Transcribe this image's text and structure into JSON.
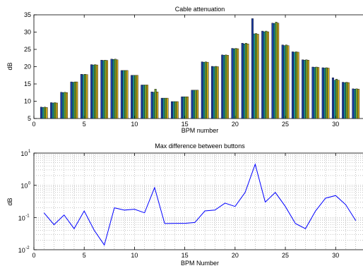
{
  "chart_data": [
    {
      "type": "bar",
      "title": "Cable attenuation",
      "xlabel": "BPM number",
      "ylabel": "dB",
      "xlim": [
        0,
        33
      ],
      "ylim": [
        5,
        35
      ],
      "xticks": [
        0,
        5,
        10,
        15,
        20,
        25,
        30
      ],
      "yticks": [
        5,
        10,
        15,
        20,
        25,
        30,
        35
      ],
      "grid": false,
      "legend": "none",
      "series_colors": [
        "#1f3ea8",
        "#1d8f93",
        "#6fa32e",
        "#c8a31c",
        "#b04a22",
        "#3a3a3a"
      ],
      "x": [
        1,
        2,
        3,
        4,
        5,
        6,
        7,
        8,
        9,
        10,
        11,
        12,
        13,
        14,
        15,
        16,
        17,
        18,
        19,
        20,
        21,
        22,
        23,
        24,
        25,
        26,
        27,
        28,
        29,
        30,
        31,
        32
      ],
      "values": [
        [
          8.3,
          8.2,
          8.3,
          8.2
        ],
        [
          9.6,
          9.5,
          9.6,
          9.5
        ],
        [
          12.6,
          12.5,
          12.6,
          12.5
        ],
        [
          15.6,
          15.5,
          15.6,
          15.6
        ],
        [
          17.8,
          17.7,
          17.8,
          17.7
        ],
        [
          20.6,
          20.5,
          20.6,
          20.5
        ],
        [
          21.9,
          21.8,
          21.9,
          21.8
        ],
        [
          22.2,
          22.1,
          22.2,
          22.0
        ],
        [
          18.9,
          18.9,
          18.9,
          18.9
        ],
        [
          17.5,
          17.5,
          17.5,
          17.5
        ],
        [
          14.7,
          14.7,
          14.7,
          14.7
        ],
        [
          12.7,
          12.6,
          13.5,
          12.7
        ],
        [
          10.9,
          10.9,
          10.9,
          10.9
        ],
        [
          9.9,
          9.9,
          9.9,
          9.9
        ],
        [
          11.3,
          11.3,
          11.3,
          11.3
        ],
        [
          13.2,
          13.2,
          13.2,
          13.2
        ],
        [
          21.4,
          21.3,
          21.4,
          21.3
        ],
        [
          20.1,
          20.0,
          20.1,
          20.0
        ],
        [
          23.4,
          23.3,
          23.4,
          23.3
        ],
        [
          25.3,
          25.2,
          25.3,
          25.2
        ],
        [
          26.8,
          26.6,
          26.8,
          26.6
        ],
        [
          33.9,
          29.5,
          29.6,
          29.4
        ],
        [
          30.3,
          30.1,
          30.3,
          30.1
        ],
        [
          32.6,
          32.5,
          32.9,
          32.6
        ],
        [
          26.3,
          26.1,
          26.3,
          26.1
        ],
        [
          24.3,
          24.2,
          24.3,
          24.2
        ],
        [
          22.0,
          21.9,
          22.0,
          21.9
        ],
        [
          19.9,
          19.8,
          19.9,
          19.8
        ],
        [
          19.7,
          19.6,
          19.7,
          19.6
        ],
        [
          16.8,
          16.1,
          16.4,
          16.1
        ],
        [
          15.5,
          15.4,
          15.5,
          15.4
        ],
        [
          13.6,
          13.5,
          13.6,
          13.5
        ]
      ]
    },
    {
      "type": "line",
      "title": "Max difference between buttons",
      "xlabel": "BPM Number",
      "ylabel": "dB",
      "yscale": "log",
      "xlim": [
        0,
        33
      ],
      "ylim": [
        0.01,
        10
      ],
      "xticks": [
        0,
        5,
        10,
        15,
        20,
        25,
        30
      ],
      "ytick_labels": [
        {
          "base": "10",
          "exp": "-2"
        },
        {
          "base": "10",
          "exp": "-1"
        },
        {
          "base": "10",
          "exp": "0"
        },
        {
          "base": "10",
          "exp": "1"
        }
      ],
      "grid": true,
      "legend": "none",
      "line_color": "#0000ff",
      "x": [
        1,
        2,
        3,
        4,
        5,
        6,
        7,
        8,
        9,
        10,
        11,
        12,
        13,
        14,
        15,
        16,
        17,
        18,
        19,
        20,
        21,
        22,
        23,
        24,
        25,
        26,
        27,
        28,
        29,
        30,
        31,
        32
      ],
      "y": [
        0.14,
        0.06,
        0.12,
        0.045,
        0.16,
        0.04,
        0.014,
        0.2,
        0.17,
        0.18,
        0.14,
        0.85,
        0.065,
        0.066,
        0.066,
        0.07,
        0.16,
        0.17,
        0.28,
        0.22,
        0.6,
        4.5,
        0.3,
        0.6,
        0.22,
        0.065,
        0.045,
        0.16,
        0.4,
        0.48,
        0.25,
        0.08
      ]
    }
  ]
}
